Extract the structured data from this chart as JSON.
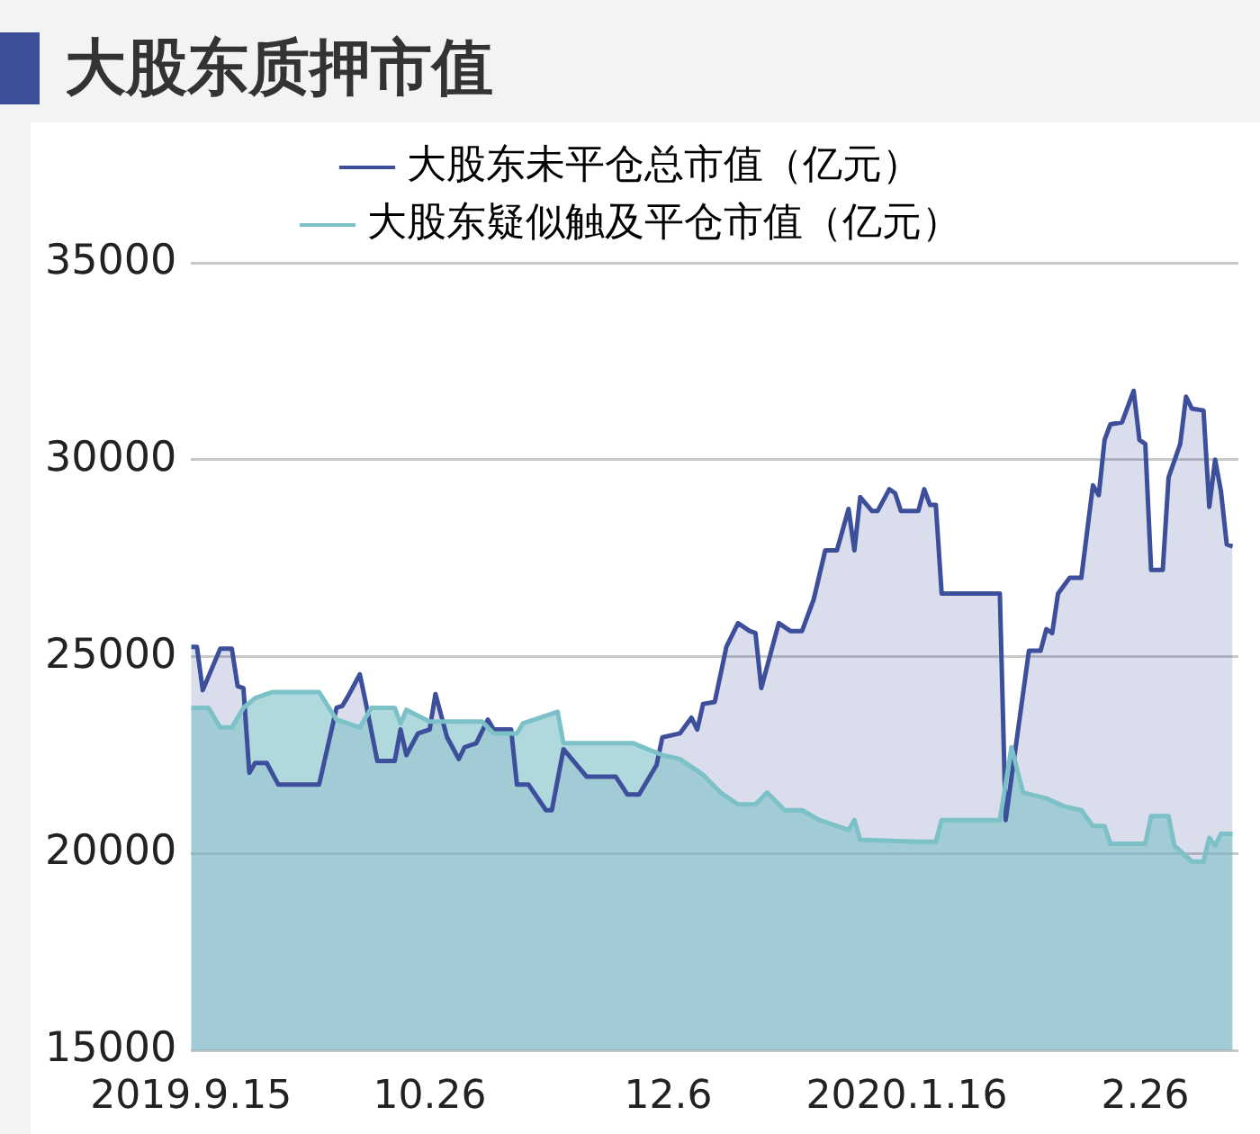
{
  "chart_data": {
    "type": "area",
    "title": "大股东质押市值",
    "xlim": [
      "2019-09-15",
      "2020-03-13"
    ],
    "xticks": [
      {
        "value": "2019-09-15",
        "label": "2019.9.15"
      },
      {
        "value": "2019-10-26",
        "label": "10.26"
      },
      {
        "value": "2019-12-06",
        "label": "12.6"
      },
      {
        "value": "2020-01-16",
        "label": "2020.1.16"
      },
      {
        "value": "2020-02-26",
        "label": "2.26"
      }
    ],
    "ylim": [
      15000,
      35000
    ],
    "yticks": [
      15000,
      20000,
      25000,
      30000,
      35000
    ],
    "grid": "y",
    "legend": "top",
    "marker": "none",
    "series": [
      {
        "name": "大股东未平仓总市值（亿元）",
        "color": "#3d4e9a",
        "x": [
          "2019-09-15",
          "2019-09-16",
          "2019-09-17",
          "2019-09-20",
          "2019-09-22",
          "2019-09-23",
          "2019-09-24",
          "2019-09-25",
          "2019-09-26",
          "2019-09-28",
          "2019-09-30",
          "2019-10-07",
          "2019-10-10",
          "2019-10-11",
          "2019-10-12",
          "2019-10-14",
          "2019-10-15",
          "2019-10-17",
          "2019-10-20",
          "2019-10-21",
          "2019-10-22",
          "2019-10-24",
          "2019-10-26",
          "2019-10-27",
          "2019-10-29",
          "2019-10-31",
          "2019-11-01",
          "2019-11-03",
          "2019-11-05",
          "2019-11-06",
          "2019-11-09",
          "2019-11-10",
          "2019-11-12",
          "2019-11-15",
          "2019-11-16",
          "2019-11-18",
          "2019-11-22",
          "2019-11-27",
          "2019-11-29",
          "2019-12-01",
          "2019-12-04",
          "2019-12-05",
          "2019-12-08",
          "2019-12-10",
          "2019-12-11",
          "2019-12-12",
          "2019-12-14",
          "2019-12-16",
          "2019-12-18",
          "2019-12-20",
          "2019-12-21",
          "2019-12-22",
          "2019-12-25",
          "2019-12-27",
          "2019-12-29",
          "2019-12-31",
          "2020-01-02",
          "2020-01-04",
          "2020-01-06",
          "2020-01-07",
          "2020-01-08",
          "2020-01-10",
          "2020-01-11",
          "2020-01-13",
          "2020-01-14",
          "2020-01-15",
          "2020-01-18",
          "2020-01-19",
          "2020-01-20",
          "2020-01-21",
          "2020-01-22",
          "2020-02-01",
          "2020-02-02",
          "2020-02-06",
          "2020-02-08",
          "2020-02-09",
          "2020-02-10",
          "2020-02-11",
          "2020-02-13",
          "2020-02-15",
          "2020-02-17",
          "2020-02-18",
          "2020-02-19",
          "2020-02-20",
          "2020-02-22",
          "2020-02-24",
          "2020-02-25",
          "2020-02-26",
          "2020-02-27",
          "2020-02-29",
          "2020-03-01",
          "2020-03-03",
          "2020-03-04",
          "2020-03-05",
          "2020-03-07",
          "2020-03-08",
          "2020-03-09",
          "2020-03-10",
          "2020-03-11",
          "2020-03-12"
        ],
        "values": [
          25250,
          25250,
          24150,
          25200,
          25200,
          24250,
          24200,
          22050,
          22300,
          22300,
          21750,
          21750,
          23700,
          23750,
          24000,
          24550,
          23850,
          22350,
          22350,
          23150,
          22500,
          23050,
          23150,
          24050,
          22950,
          22400,
          22700,
          22800,
          23400,
          23150,
          23150,
          21750,
          21750,
          21100,
          21100,
          22650,
          21950,
          21950,
          21500,
          21500,
          22250,
          22950,
          23050,
          23450,
          23150,
          23800,
          23850,
          25250,
          25850,
          25650,
          25600,
          24200,
          25850,
          25650,
          25650,
          26450,
          27700,
          27700,
          28750,
          27700,
          29050,
          28700,
          28700,
          29250,
          29150,
          28700,
          28700,
          29250,
          28850,
          28850,
          26600,
          26600,
          20850,
          25150,
          25150,
          25700,
          25600,
          26600,
          27000,
          27000,
          29350,
          29100,
          30500,
          30900,
          30950,
          31750,
          30500,
          30400,
          27200,
          27200,
          29550,
          30400,
          31600,
          31300,
          31250,
          28800,
          30000,
          29200,
          27850,
          27800
        ]
      },
      {
        "name": "大股东疑似触及平仓市值（亿元）",
        "color": "#7cc0c8",
        "x": [
          "2019-09-15",
          "2019-09-18",
          "2019-09-20",
          "2019-09-22",
          "2019-09-24",
          "2019-09-26",
          "2019-09-29",
          "2019-10-07",
          "2019-10-10",
          "2019-10-12",
          "2019-10-14",
          "2019-10-16",
          "2019-10-20",
          "2019-10-21",
          "2019-10-22",
          "2019-10-26",
          "2019-11-04",
          "2019-11-06",
          "2019-11-10",
          "2019-11-11",
          "2019-11-17",
          "2019-11-18",
          "2019-11-30",
          "2019-12-05",
          "2019-12-08",
          "2019-12-10",
          "2019-12-12",
          "2019-12-15",
          "2019-12-18",
          "2019-12-21",
          "2019-12-23",
          "2019-12-26",
          "2019-12-29",
          "2020-01-01",
          "2020-01-06",
          "2020-01-07",
          "2020-01-08",
          "2020-01-18",
          "2020-01-21",
          "2020-01-22",
          "2020-02-01",
          "2020-02-03",
          "2020-02-05",
          "2020-02-09",
          "2020-02-12",
          "2020-02-15",
          "2020-02-17",
          "2020-02-19",
          "2020-02-20",
          "2020-02-26",
          "2020-02-27",
          "2020-03-01",
          "2020-03-02",
          "2020-03-05",
          "2020-03-07",
          "2020-03-08",
          "2020-03-09",
          "2020-03-10",
          "2020-03-12"
        ],
        "values": [
          23700,
          23700,
          23200,
          23200,
          23700,
          23950,
          24100,
          24100,
          23400,
          23300,
          23200,
          23700,
          23700,
          23300,
          23650,
          23350,
          23350,
          23050,
          23050,
          23300,
          23600,
          22800,
          22800,
          22500,
          22400,
          22200,
          22000,
          21550,
          21250,
          21250,
          21550,
          21100,
          21100,
          20850,
          20600,
          20850,
          20350,
          20300,
          20300,
          20850,
          20850,
          22700,
          21550,
          21400,
          21200,
          21100,
          20700,
          20700,
          20250,
          20250,
          20950,
          20950,
          20200,
          19800,
          19800,
          20400,
          20200,
          20500,
          20500
        ]
      }
    ]
  }
}
